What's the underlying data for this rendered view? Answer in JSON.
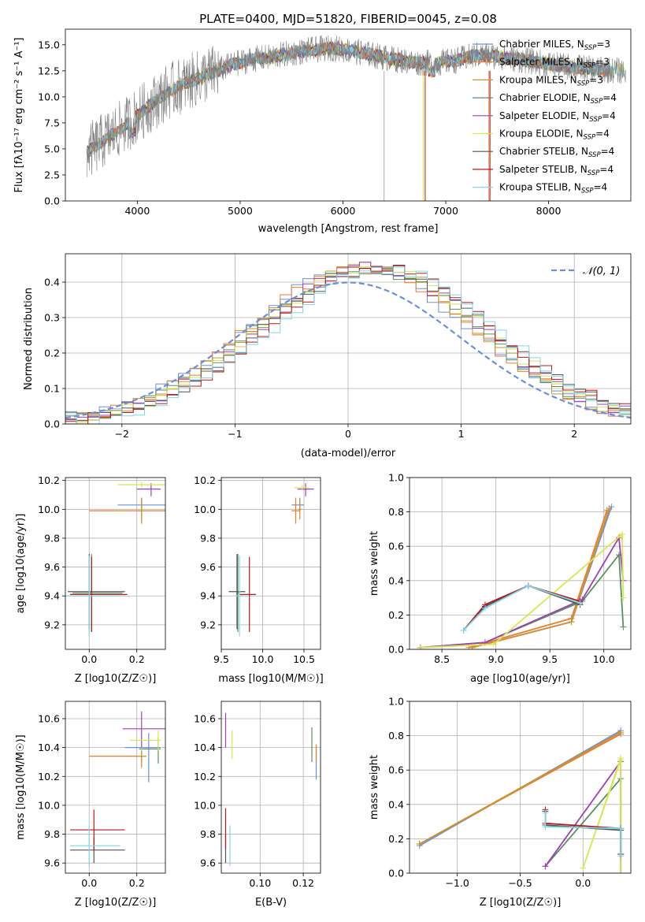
{
  "title": "PLATE=0400, MJD=51820, FIBERID=0045, z=0.08",
  "series_names": [
    "Chabrier MILES, N_SSP=3",
    "Salpeter MILES, N_SSP=3",
    "Kroupa MILES, N_SSP=3",
    "Chabrier ELODIE, N_SSP=4",
    "Salpeter ELODIE, N_SSP=4",
    "Kroupa ELODIE, N_SSP=4",
    "Chabrier STELIB, N_SSP=4",
    "Salpeter STELIB, N_SSP=4",
    "Kroupa STELIB, N_SSP=4"
  ],
  "legend_display": [
    {
      "pre": "Chabrier MILES, N",
      "sub": "SSP",
      "post": "=3"
    },
    {
      "pre": "Salpeter MILES, N",
      "sub": "SSP",
      "post": "=3"
    },
    {
      "pre": "Kroupa MILES, N",
      "sub": "SSP",
      "post": "=3"
    },
    {
      "pre": "Chabrier ELODIE, N",
      "sub": "SSP",
      "post": "=4"
    },
    {
      "pre": "Salpeter ELODIE, N",
      "sub": "SSP",
      "post": "=4"
    },
    {
      "pre": "Kroupa ELODIE, N",
      "sub": "SSP",
      "post": "=4"
    },
    {
      "pre": "Chabrier STELIB, N",
      "sub": "SSP",
      "post": "=4"
    },
    {
      "pre": "Salpeter STELIB, N",
      "sub": "SSP",
      "post": "=4"
    },
    {
      "pre": "Kroupa STELIB, N",
      "sub": "SSP",
      "post": "=4"
    }
  ],
  "colors": [
    "#6a8fdc",
    "#ee7b2f",
    "#c8962d",
    "#5a9060",
    "#a040b8",
    "#d6e850",
    "#555555",
    "#b81818",
    "#7ed8e8"
  ],
  "chart_data": [
    {
      "type": "line",
      "id": "spectrum",
      "xlabel": "wavelength [Angstrom, rest frame]",
      "ylabel": "Flux [fλ10⁻¹⁷ erg cm⁻² s⁻¹ A⁻¹]",
      "xlim": [
        3300,
        8800
      ],
      "ylim": [
        0,
        16.5
      ],
      "xticks": [
        4000,
        5000,
        6000,
        7000,
        8000
      ],
      "yticks": [
        0.0,
        2.5,
        5.0,
        7.5,
        10.0,
        12.5,
        15.0
      ],
      "grid": false,
      "legend": "top-right",
      "continuum_model": {
        "x": [
          3500,
          3700,
          3900,
          4100,
          4300,
          4500,
          4700,
          4900,
          5100,
          5300,
          5500,
          5700,
          5900,
          6100,
          6300,
          6500,
          6700,
          6900,
          7100,
          7300,
          7500,
          7700,
          7900,
          8100,
          8300,
          8500,
          8700
        ],
        "y": [
          4.6,
          6.0,
          7.4,
          9.0,
          10.5,
          11.4,
          12.2,
          13.0,
          13.6,
          13.8,
          14.2,
          14.5,
          14.7,
          14.4,
          14.0,
          13.6,
          13.3,
          13.2,
          13.5,
          14.0,
          13.9,
          13.6,
          13.3,
          13.0,
          12.8,
          12.6,
          12.5
        ]
      },
      "observed_data_color": "#808080"
    },
    {
      "type": "bar",
      "id": "residuals",
      "xlabel": "(data-model)/error",
      "ylabel": "Normed distribution",
      "xlim": [
        -2.5,
        2.5
      ],
      "ylim": [
        0,
        0.48
      ],
      "xticks": [
        -2,
        -1,
        0,
        1,
        2
      ],
      "yticks": [
        0.0,
        0.1,
        0.2,
        0.3,
        0.4
      ],
      "grid": true,
      "legend": "top-right",
      "reference_curve": {
        "name": "N(0,1)",
        "mean": 0,
        "sigma": 1,
        "color": "#6a8fdc"
      },
      "histogram": {
        "bin_width": 0.1,
        "x": [
          -2.5,
          2.5
        ],
        "peak_center": 0.2,
        "peak_height": 0.44,
        "sigma": 1.0
      }
    },
    {
      "type": "scatter",
      "id": "age_vs_Z",
      "xlabel": "Z [log10(Z/Z☉)]",
      "ylabel": "age  [log10(age/yr)]",
      "xlim": [
        -0.1,
        0.32
      ],
      "ylim": [
        9.03,
        10.22
      ],
      "xticks": [
        0.0,
        0.2
      ],
      "yticks": [
        9.2,
        9.4,
        9.6,
        9.8,
        10.0,
        10.2
      ],
      "grid": true,
      "points": [
        {
          "series": 0,
          "x": 0.22,
          "y": 10.03,
          "xerr": [
            0.1,
            0.1
          ],
          "yerr": [
            0.05,
            0.05
          ]
        },
        {
          "series": 1,
          "x": 0.22,
          "y": 9.99,
          "xerr": [
            0.22,
            0.22
          ],
          "yerr": [
            0.09,
            0.09
          ]
        },
        {
          "series": 2,
          "x": 0.22,
          "y": 9.99,
          "xerr": [
            0.02,
            0.02
          ],
          "yerr": [
            0.07,
            0.07
          ]
        },
        {
          "series": 3,
          "x": 0.01,
          "y": 9.42,
          "xerr": [
            0.08,
            0.13
          ],
          "yerr": [
            0.27,
            0.27
          ]
        },
        {
          "series": 4,
          "x": 0.26,
          "y": 10.14,
          "xerr": [
            0.06,
            0.04
          ],
          "yerr": [
            0.05,
            0.04
          ]
        },
        {
          "series": 5,
          "x": 0.22,
          "y": 10.17,
          "xerr": [
            0.1,
            0.1
          ],
          "yerr": [
            0.02,
            0.02
          ]
        },
        {
          "series": 6,
          "x": 0.0,
          "y": 9.43,
          "xerr": [
            0.09,
            0.15
          ],
          "yerr": [
            0.26,
            0.26
          ]
        },
        {
          "series": 7,
          "x": 0.01,
          "y": 9.41,
          "xerr": [
            0.09,
            0.15
          ],
          "yerr": [
            0.26,
            0.26
          ]
        },
        {
          "series": 8,
          "x": 0.0,
          "y": 9.4,
          "xerr": [
            0.1,
            0.13
          ],
          "yerr": [
            0.28,
            0.28
          ]
        }
      ]
    },
    {
      "type": "scatter",
      "id": "age_vs_mass",
      "xlabel": "mass [log10(M/M☉)]",
      "ylabel": "",
      "xlim": [
        9.5,
        10.7
      ],
      "ylim": [
        9.03,
        10.22
      ],
      "xticks": [
        9.5,
        10.0,
        10.5
      ],
      "yticks": [
        9.2,
        9.4,
        9.6,
        9.8,
        10.0,
        10.2
      ],
      "grid": true,
      "points": [
        {
          "series": 0,
          "x": 10.45,
          "y": 10.03,
          "xerr": [
            0.1,
            0.05
          ],
          "yerr": [
            0.05,
            0.05
          ]
        },
        {
          "series": 1,
          "x": 10.4,
          "y": 9.99,
          "xerr": [
            0.05,
            0.05
          ],
          "yerr": [
            0.09,
            0.09
          ]
        },
        {
          "series": 2,
          "x": 10.45,
          "y": 10.0,
          "xerr": [
            0.02,
            0.02
          ],
          "yerr": [
            0.07,
            0.07
          ]
        },
        {
          "series": 3,
          "x": 9.7,
          "y": 9.42,
          "xerr": [
            0.02,
            0.02
          ],
          "yerr": [
            0.27,
            0.27
          ]
        },
        {
          "series": 4,
          "x": 10.52,
          "y": 10.14,
          "xerr": [
            0.1,
            0.1
          ],
          "yerr": [
            0.05,
            0.04
          ]
        },
        {
          "series": 5,
          "x": 10.48,
          "y": 10.15,
          "xerr": [
            0.1,
            0.08
          ],
          "yerr": [
            0.02,
            0.02
          ]
        },
        {
          "series": 6,
          "x": 9.69,
          "y": 9.43,
          "xerr": [
            0.1,
            0.1
          ],
          "yerr": [
            0.26,
            0.26
          ]
        },
        {
          "series": 7,
          "x": 9.84,
          "y": 9.41,
          "xerr": [
            0.12,
            0.08
          ],
          "yerr": [
            0.26,
            0.26
          ]
        },
        {
          "series": 8,
          "x": 9.72,
          "y": 9.4,
          "xerr": [
            0.05,
            0.05
          ],
          "yerr": [
            0.28,
            0.28
          ]
        }
      ]
    },
    {
      "type": "line",
      "id": "weight_vs_age",
      "xlabel": "age  [log10(age/yr)]",
      "ylabel": "mass weight",
      "xlim": [
        8.2,
        10.25
      ],
      "ylim": [
        0,
        1.0
      ],
      "xticks": [
        8.5,
        9.0,
        9.5,
        10.0
      ],
      "yticks": [
        0.0,
        0.2,
        0.4,
        0.6,
        0.8,
        1.0
      ],
      "grid": true,
      "series": [
        {
          "idx": 0,
          "x": [
            8.78,
            9.7,
            10.07
          ],
          "y": [
            0.01,
            0.16,
            0.83
          ]
        },
        {
          "idx": 1,
          "x": [
            8.75,
            9.7,
            10.03
          ],
          "y": [
            0.01,
            0.18,
            0.81
          ]
        },
        {
          "idx": 2,
          "x": [
            8.78,
            9.7,
            10.05
          ],
          "y": [
            0.01,
            0.16,
            0.82
          ]
        },
        {
          "idx": 3,
          "x": [
            8.3,
            8.9,
            9.8,
            10.14,
            10.18
          ],
          "y": [
            0.01,
            0.04,
            0.28,
            0.55,
            0.13
          ]
        },
        {
          "idx": 4,
          "x": [
            8.3,
            8.9,
            9.8,
            10.14,
            10.18
          ],
          "y": [
            0.01,
            0.04,
            0.29,
            0.65,
            0.4
          ]
        },
        {
          "idx": 5,
          "x": [
            8.3,
            8.98,
            10.15,
            10.17,
            10.18
          ],
          "y": [
            0.01,
            0.03,
            0.66,
            0.67,
            0.3
          ]
        },
        {
          "idx": 6,
          "x": [
            8.7,
            8.9,
            9.3,
            9.78
          ],
          "y": [
            0.11,
            0.25,
            0.37,
            0.26
          ]
        },
        {
          "idx": 7,
          "x": [
            8.7,
            8.9,
            9.3,
            9.78
          ],
          "y": [
            0.11,
            0.26,
            0.37,
            0.28
          ]
        },
        {
          "idx": 8,
          "x": [
            8.7,
            8.9,
            9.3,
            9.78
          ],
          "y": [
            0.11,
            0.24,
            0.37,
            0.27
          ]
        }
      ]
    },
    {
      "type": "scatter",
      "id": "mass_vs_Z",
      "xlabel": "Z [log10(Z/Z☉)]",
      "ylabel": "mass [log10(M/M☉)]",
      "xlim": [
        -0.1,
        0.32
      ],
      "ylim": [
        9.53,
        10.72
      ],
      "xticks": [
        0.0,
        0.2
      ],
      "yticks": [
        9.6,
        9.8,
        10.0,
        10.2,
        10.4,
        10.6
      ],
      "grid": true,
      "points": [
        {
          "series": 0,
          "x": 0.25,
          "y": 10.4,
          "xerr": [
            0.1,
            0.05
          ],
          "yerr": [
            0.24,
            0.1
          ]
        },
        {
          "series": 1,
          "x": 0.22,
          "y": 10.34,
          "xerr": [
            0.22,
            0.02
          ],
          "yerr": [
            0.08,
            0.04
          ]
        },
        {
          "series": 2,
          "x": 0.22,
          "y": 10.34,
          "xerr": [
            0.02,
            0.02
          ],
          "yerr": [
            0.04,
            0.04
          ]
        },
        {
          "series": 3,
          "x": 0.29,
          "y": 10.39,
          "xerr": [
            0.08,
            0.01
          ],
          "yerr": [
            0.1,
            0.08
          ]
        },
        {
          "series": 4,
          "x": 0.22,
          "y": 10.53,
          "xerr": [
            0.08,
            0.1
          ],
          "yerr": [
            0.13,
            0.12
          ]
        },
        {
          "series": 5,
          "x": 0.29,
          "y": 10.45,
          "xerr": [
            0.12,
            0.01
          ],
          "yerr": [
            0.07,
            0.07
          ]
        },
        {
          "series": 6,
          "x": 0.02,
          "y": 9.69,
          "xerr": [
            0.1,
            0.13
          ],
          "yerr": [
            0.09,
            0.09
          ]
        },
        {
          "series": 7,
          "x": 0.02,
          "y": 9.83,
          "xerr": [
            0.1,
            0.13
          ],
          "yerr": [
            0.14,
            0.14
          ]
        },
        {
          "series": 8,
          "x": 0.0,
          "y": 9.72,
          "xerr": [
            0.08,
            0.13
          ],
          "yerr": [
            0.14,
            0.14
          ]
        }
      ]
    },
    {
      "type": "scatter",
      "id": "mass_vs_ebv",
      "xlabel": "E(B-V)",
      "ylabel": "",
      "xlim": [
        0.082,
        0.128
      ],
      "ylim": [
        9.53,
        10.72
      ],
      "xticks": [
        0.1,
        0.12
      ],
      "yticks": [
        9.6,
        9.8,
        10.0,
        10.2,
        10.4,
        10.6
      ],
      "grid": true,
      "points": [
        {
          "series": 0,
          "x": 0.126,
          "y": 10.3,
          "xerr": [
            0,
            0
          ],
          "yerr": [
            0.12,
            0.12
          ]
        },
        {
          "series": 1,
          "x": 0.126,
          "y": 10.36,
          "xerr": [
            0,
            0
          ],
          "yerr": [
            0.06,
            0.06
          ]
        },
        {
          "series": 2,
          "x": 0.126,
          "y": 10.34,
          "xerr": [
            0,
            0
          ],
          "yerr": [
            0.04,
            0.04
          ]
        },
        {
          "series": 3,
          "x": 0.124,
          "y": 10.42,
          "xerr": [
            0,
            0
          ],
          "yerr": [
            0.12,
            0.12
          ]
        },
        {
          "series": 4,
          "x": 0.084,
          "y": 10.52,
          "xerr": [
            0,
            0
          ],
          "yerr": [
            0.12,
            0.12
          ]
        },
        {
          "series": 5,
          "x": 0.087,
          "y": 10.42,
          "xerr": [
            0,
            0
          ],
          "yerr": [
            0.1,
            0.1
          ]
        },
        {
          "series": 6,
          "x": 0.084,
          "y": 9.7,
          "xerr": [
            0,
            0
          ],
          "yerr": [
            0.1,
            0.1
          ]
        },
        {
          "series": 7,
          "x": 0.084,
          "y": 9.84,
          "xerr": [
            0,
            0
          ],
          "yerr": [
            0.14,
            0.14
          ]
        },
        {
          "series": 8,
          "x": 0.086,
          "y": 9.72,
          "xerr": [
            0,
            0
          ],
          "yerr": [
            0.14,
            0.14
          ]
        }
      ]
    },
    {
      "type": "line",
      "id": "weight_vs_Z",
      "xlabel": "Z [log10(Z/Z☉)]",
      "ylabel": "mass weight",
      "xlim": [
        -1.38,
        0.38
      ],
      "ylim": [
        0,
        1.0
      ],
      "xticks": [
        -1.0,
        -0.5,
        0.0
      ],
      "yticks": [
        0.0,
        0.2,
        0.4,
        0.6,
        0.8,
        1.0
      ],
      "grid": true,
      "series": [
        {
          "idx": 0,
          "x": [
            -1.3,
            0.3
          ],
          "y": [
            0.16,
            0.83
          ]
        },
        {
          "idx": 1,
          "x": [
            -1.3,
            0.3
          ],
          "y": [
            0.17,
            0.81
          ]
        },
        {
          "idx": 2,
          "x": [
            -1.3,
            0.3
          ],
          "y": [
            0.17,
            0.82
          ]
        },
        {
          "idx": 3,
          "x": [
            -0.3,
            0.3,
            0.3
          ],
          "y": [
            0.04,
            0.55,
            0.0
          ]
        },
        {
          "idx": 4,
          "x": [
            -0.3,
            0.3,
            0.3
          ],
          "y": [
            0.04,
            0.65,
            0.0
          ]
        },
        {
          "idx": 5,
          "x": [
            0.3,
            0.0,
            0.3,
            0.3
          ],
          "y": [
            0.66,
            0.03,
            0.67,
            0.0
          ]
        },
        {
          "idx": 6,
          "x": [
            -0.3,
            -0.3,
            0.3,
            0.3
          ],
          "y": [
            0.36,
            0.28,
            0.25,
            0.11
          ]
        },
        {
          "idx": 7,
          "x": [
            -0.3,
            -0.3,
            0.3,
            0.3
          ],
          "y": [
            0.37,
            0.29,
            0.26,
            0.11
          ]
        },
        {
          "idx": 8,
          "x": [
            -0.3,
            -0.3,
            0.3,
            0.3
          ],
          "y": [
            0.35,
            0.27,
            0.26,
            0.1
          ]
        }
      ]
    }
  ]
}
